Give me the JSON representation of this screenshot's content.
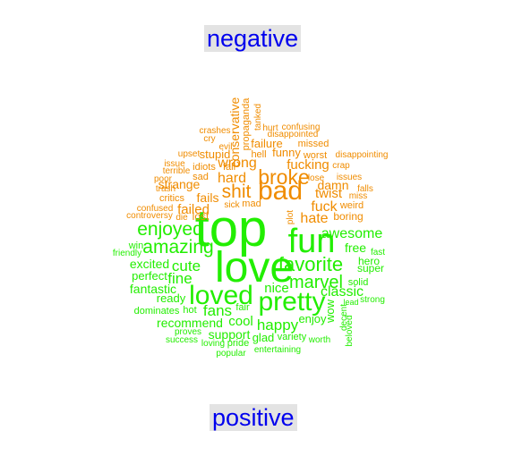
{
  "chart_data": {
    "type": "comparison wordcloud",
    "groups": [
      {
        "name": "negative",
        "color": "#f08c00"
      },
      {
        "name": "positive",
        "color": "#22ee00"
      }
    ],
    "words": [
      {
        "text": "top",
        "group": "positive",
        "weight": 10
      },
      {
        "text": "love",
        "group": "positive",
        "weight": 9
      },
      {
        "text": "fun",
        "group": "positive",
        "weight": 7
      },
      {
        "text": "pretty",
        "group": "positive",
        "weight": 5.8
      },
      {
        "text": "loved",
        "group": "positive",
        "weight": 5.5
      },
      {
        "text": "favorite",
        "group": "positive",
        "weight": 4.2
      },
      {
        "text": "amazing",
        "group": "positive",
        "weight": 4
      },
      {
        "text": "enjoyed",
        "group": "positive",
        "weight": 4
      },
      {
        "text": "marvel",
        "group": "positive",
        "weight": 3.8
      },
      {
        "text": "cute",
        "group": "positive",
        "weight": 3.2
      },
      {
        "text": "fine",
        "group": "positive",
        "weight": 3.2
      },
      {
        "text": "fans",
        "group": "positive",
        "weight": 3.1
      },
      {
        "text": "happy",
        "group": "positive",
        "weight": 3.1
      },
      {
        "text": "awesome",
        "group": "positive",
        "weight": 3
      },
      {
        "text": "classic",
        "group": "positive",
        "weight": 3
      },
      {
        "text": "nice",
        "group": "positive",
        "weight": 2.8
      },
      {
        "text": "cool",
        "group": "positive",
        "weight": 2.8
      },
      {
        "text": "excited",
        "group": "positive",
        "weight": 2.5
      },
      {
        "text": "fantastic",
        "group": "positive",
        "weight": 2.5
      },
      {
        "text": "recommend",
        "group": "positive",
        "weight": 2.5
      },
      {
        "text": "support",
        "group": "positive",
        "weight": 2.5
      },
      {
        "text": "enjoy",
        "group": "positive",
        "weight": 2.3
      },
      {
        "text": "wow",
        "group": "positive",
        "weight": 2.3
      },
      {
        "text": "free",
        "group": "positive",
        "weight": 2.3
      },
      {
        "text": "perfect",
        "group": "positive",
        "weight": 2.2
      },
      {
        "text": "ready",
        "group": "positive",
        "weight": 2.2
      },
      {
        "text": "glad",
        "group": "positive",
        "weight": 2.2
      },
      {
        "text": "hero",
        "group": "positive",
        "weight": 2
      },
      {
        "text": "super",
        "group": "positive",
        "weight": 2
      },
      {
        "text": "solid",
        "group": "positive",
        "weight": 1.9
      },
      {
        "text": "variety",
        "group": "positive",
        "weight": 1.8
      },
      {
        "text": "win",
        "group": "positive",
        "weight": 1.8
      },
      {
        "text": "friendly",
        "group": "positive",
        "weight": 1.7
      },
      {
        "text": "fast",
        "group": "positive",
        "weight": 1.7
      },
      {
        "text": "strong",
        "group": "positive",
        "weight": 1.7
      },
      {
        "text": "lead",
        "group": "positive",
        "weight": 1.5
      },
      {
        "text": "decent",
        "group": "positive",
        "weight": 1.7
      },
      {
        "text": "beloved",
        "group": "positive",
        "weight": 1.6
      },
      {
        "text": "dominates",
        "group": "positive",
        "weight": 1.7
      },
      {
        "text": "hot",
        "group": "positive",
        "weight": 1.7
      },
      {
        "text": "fair",
        "group": "positive",
        "weight": 1.7
      },
      {
        "text": "proves",
        "group": "positive",
        "weight": 1.6
      },
      {
        "text": "success",
        "group": "positive",
        "weight": 1.6
      },
      {
        "text": "loving",
        "group": "positive",
        "weight": 1.6
      },
      {
        "text": "pride",
        "group": "positive",
        "weight": 1.7
      },
      {
        "text": "worth",
        "group": "positive",
        "weight": 1.6
      },
      {
        "text": "popular",
        "group": "positive",
        "weight": 1.6
      },
      {
        "text": "entertaining",
        "group": "positive",
        "weight": 1.6
      },
      {
        "text": "bad",
        "group": "negative",
        "weight": 6
      },
      {
        "text": "broke",
        "group": "negative",
        "weight": 4.8
      },
      {
        "text": "shit",
        "group": "negative",
        "weight": 4.4
      },
      {
        "text": "hard",
        "group": "negative",
        "weight": 3.6
      },
      {
        "text": "hate",
        "group": "negative",
        "weight": 3.4
      },
      {
        "text": "wrong",
        "group": "negative",
        "weight": 3.3
      },
      {
        "text": "failed",
        "group": "negative",
        "weight": 3.2
      },
      {
        "text": "fuck",
        "group": "negative",
        "weight": 3.1
      },
      {
        "text": "fucking",
        "group": "negative",
        "weight": 3
      },
      {
        "text": "twist",
        "group": "negative",
        "weight": 2.9
      },
      {
        "text": "fails",
        "group": "negative",
        "weight": 2.9
      },
      {
        "text": "strange",
        "group": "negative",
        "weight": 2.6
      },
      {
        "text": "damn",
        "group": "negative",
        "weight": 2.6
      },
      {
        "text": "stupid",
        "group": "negative",
        "weight": 2.6
      },
      {
        "text": "funny",
        "group": "negative",
        "weight": 2.6
      },
      {
        "text": "failure",
        "group": "negative",
        "weight": 2.6
      },
      {
        "text": "conservative",
        "group": "negative",
        "weight": 2.3
      },
      {
        "text": "lost",
        "group": "negative",
        "weight": 2.3
      },
      {
        "text": "boring",
        "group": "negative",
        "weight": 2.2
      },
      {
        "text": "weird",
        "group": "negative",
        "weight": 2.1
      },
      {
        "text": "idiots",
        "group": "negative",
        "weight": 2.1
      },
      {
        "text": "hell",
        "group": "negative",
        "weight": 2.1
      },
      {
        "text": "worst",
        "group": "negative",
        "weight": 2.1
      },
      {
        "text": "critics",
        "group": "negative",
        "weight": 2.1
      },
      {
        "text": "sad",
        "group": "negative",
        "weight": 2
      },
      {
        "text": "mad",
        "group": "negative",
        "weight": 2
      },
      {
        "text": "fall",
        "group": "negative",
        "weight": 2
      },
      {
        "text": "missed",
        "group": "negative",
        "weight": 2
      },
      {
        "text": "crap",
        "group": "negative",
        "weight": 1.9
      },
      {
        "text": "issues",
        "group": "negative",
        "weight": 1.9
      },
      {
        "text": "miss",
        "group": "negative",
        "weight": 1.9
      },
      {
        "text": "confusing",
        "group": "negative",
        "weight": 1.9
      },
      {
        "text": "disappointed",
        "group": "negative",
        "weight": 1.9
      },
      {
        "text": "disappointing",
        "group": "negative",
        "weight": 1.9
      },
      {
        "text": "crashes",
        "group": "negative",
        "weight": 1.9
      },
      {
        "text": "upset",
        "group": "negative",
        "weight": 1.8
      },
      {
        "text": "trash",
        "group": "negative",
        "weight": 1.8
      },
      {
        "text": "poor",
        "group": "negative",
        "weight": 1.8
      },
      {
        "text": "falls",
        "group": "negative",
        "weight": 1.8
      },
      {
        "text": "confused",
        "group": "negative",
        "weight": 1.8
      },
      {
        "text": "controversy",
        "group": "negative",
        "weight": 1.8
      },
      {
        "text": "die",
        "group": "negative",
        "weight": 1.8
      },
      {
        "text": "cry",
        "group": "negative",
        "weight": 1.7
      },
      {
        "text": "hurt",
        "group": "negative",
        "weight": 1.7
      },
      {
        "text": "lose",
        "group": "negative",
        "weight": 1.7
      },
      {
        "text": "evil",
        "group": "negative",
        "weight": 1.7
      },
      {
        "text": "issue",
        "group": "negative",
        "weight": 1.7
      },
      {
        "text": "terrible",
        "group": "negative",
        "weight": 1.7
      },
      {
        "text": "sick",
        "group": "negative",
        "weight": 1.6
      },
      {
        "text": "propaganda",
        "group": "negative",
        "weight": 1.7
      },
      {
        "text": "tanked",
        "group": "negative",
        "weight": 1.6
      },
      {
        "text": "plot",
        "group": "negative",
        "weight": 1.5
      }
    ]
  },
  "labels": {
    "negative": "negative",
    "positive": "positive"
  }
}
